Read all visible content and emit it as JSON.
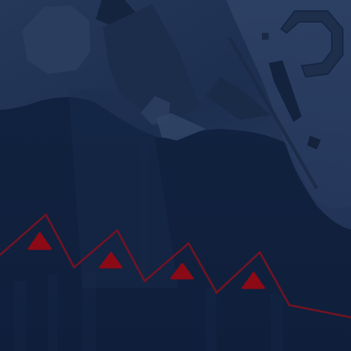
{
  "colors": {
    "background": "#0f1f3b",
    "upper_panel": "#1b2d4c",
    "upper_panel_light": "#2a3c5c",
    "debris_dark": "#142643",
    "accent_red": "#8b0a16",
    "line_red": "#6e1424"
  },
  "scene": {
    "icons": [
      "octagon-shape",
      "ring-shape",
      "shard-shape",
      "zigzag-line",
      "triangle-marker"
    ]
  }
}
